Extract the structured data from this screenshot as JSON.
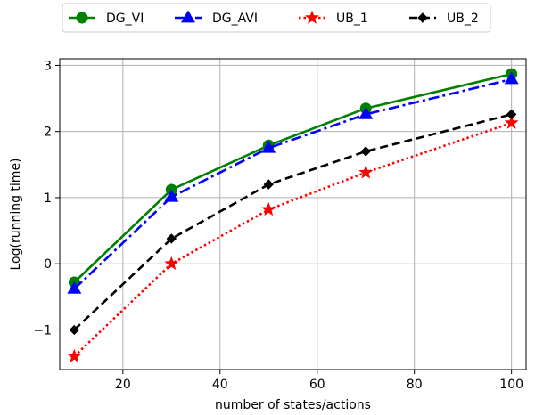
{
  "chart_data": {
    "type": "line",
    "xlabel": "number of states/actions",
    "ylabel": "Log(running time)",
    "xlim": [
      7,
      103
    ],
    "ylim": [
      -1.6,
      3.1
    ],
    "x": [
      10,
      30,
      50,
      70,
      100
    ],
    "xticks": [
      20,
      40,
      60,
      80,
      100
    ],
    "yticks": [
      -1,
      0,
      1,
      2,
      3
    ],
    "xtick_labels": [
      "20",
      "40",
      "60",
      "80",
      "100"
    ],
    "ytick_labels": [
      "−1",
      "0",
      "1",
      "2",
      "3"
    ],
    "grid": true,
    "legend_position": "top-center, outside plot",
    "series": [
      {
        "name": "DG_VI",
        "values": [
          -0.28,
          1.12,
          1.79,
          2.35,
          2.87
        ],
        "color": "#008000",
        "line_style": "solid",
        "marker": "circle"
      },
      {
        "name": "DG_AVI",
        "values": [
          -0.38,
          1.01,
          1.75,
          2.26,
          2.79
        ],
        "color": "#0000ff",
        "line_style": "dashdot",
        "marker": "triangle"
      },
      {
        "name": "UB_1",
        "values": [
          -1.4,
          0.0,
          0.82,
          1.38,
          2.13
        ],
        "color": "#ff0000",
        "line_style": "dotted",
        "marker": "star"
      },
      {
        "name": "UB_2",
        "values": [
          -1.0,
          0.38,
          1.2,
          1.7,
          2.26
        ],
        "color": "#000000",
        "line_style": "dashed",
        "marker": "diamond"
      }
    ]
  }
}
